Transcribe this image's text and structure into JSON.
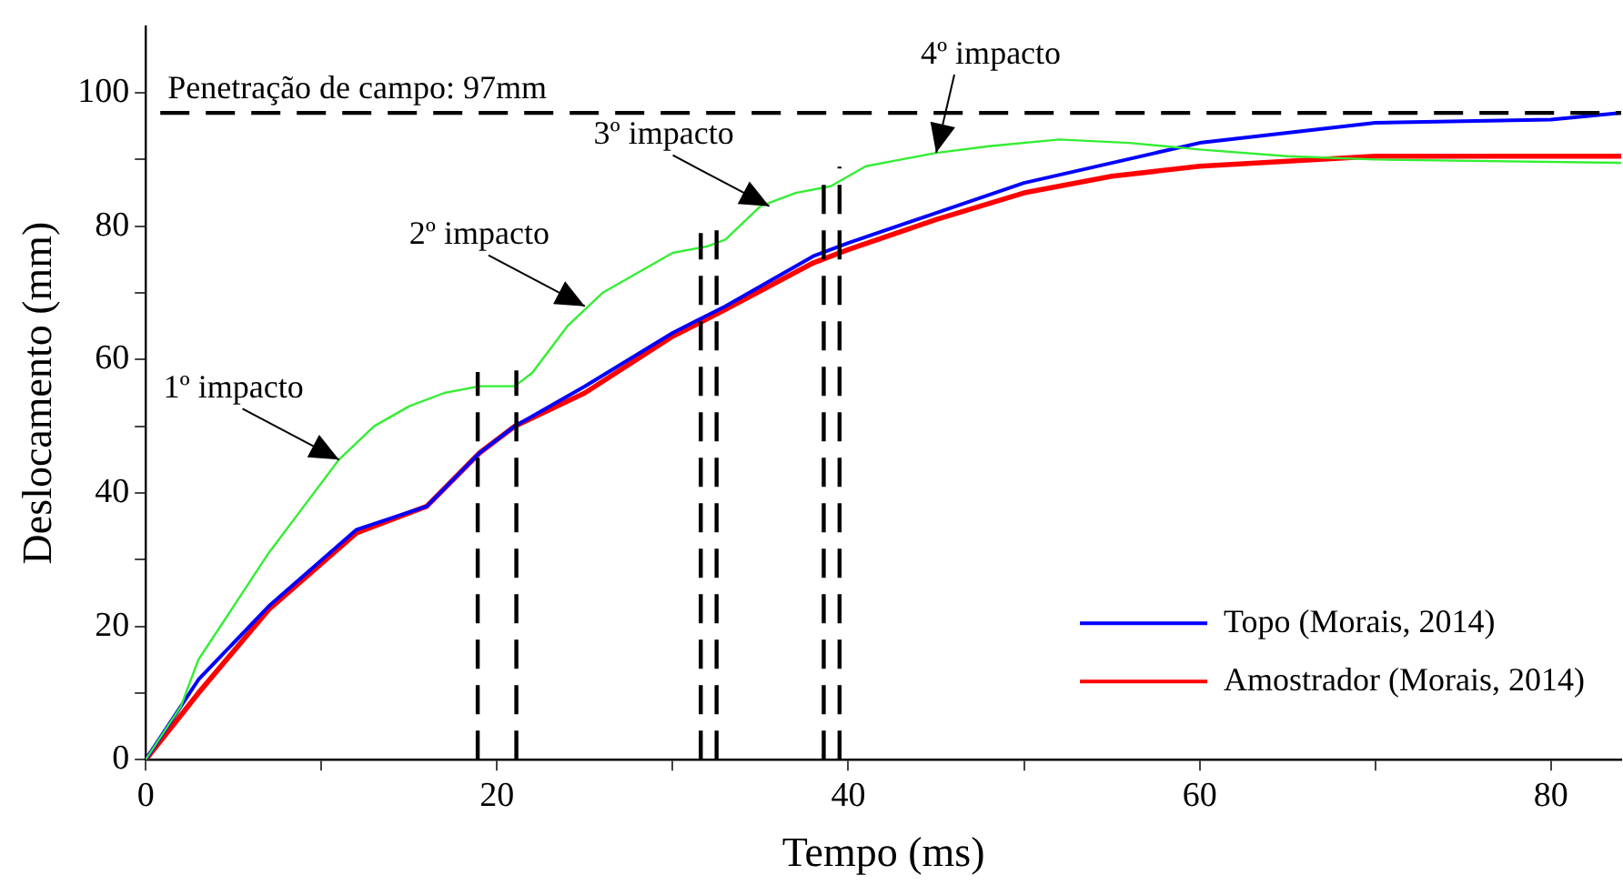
{
  "chart_data": {
    "type": "line",
    "xlabel": "Tempo (ms)",
    "ylabel": "Deslocamento (mm)",
    "xlim": [
      0,
      84
    ],
    "ylim": [
      0,
      110
    ],
    "xticks": [
      0,
      {
        "value": 10,
        "label": null
      },
      20,
      {
        "value": 30,
        "label": null
      },
      40,
      {
        "value": 50,
        "label": null
      },
      60,
      {
        "value": 70,
        "label": null
      },
      80
    ],
    "yticks": [
      0,
      {
        "value": 10,
        "label": null
      },
      20,
      {
        "value": 30,
        "label": null
      },
      40,
      {
        "value": 50,
        "label": null
      },
      60,
      {
        "value": 70,
        "label": null
      },
      80,
      {
        "value": 90,
        "label": null
      },
      100
    ],
    "grid": false,
    "legend": "bottom right",
    "marker": "none",
    "line_style": "solid",
    "series": [
      {
        "color": "#33ee33",
        "x": [
          0,
          2,
          3,
          5,
          7,
          9,
          11,
          13,
          15,
          17,
          19,
          21,
          22,
          24,
          26,
          28,
          30,
          32,
          33,
          35,
          37,
          39,
          41,
          43,
          45,
          48,
          52,
          56,
          60,
          65,
          70,
          84
        ],
        "values": [
          0,
          8,
          15,
          23,
          31,
          38,
          45,
          50,
          53,
          55,
          56,
          56,
          58,
          65,
          70,
          73,
          76,
          77,
          78,
          83,
          85,
          86,
          89,
          90,
          91,
          92,
          93,
          92.5,
          91.5,
          90.5,
          90,
          89.5
        ]
      },
      {
        "name": "Topo (Morais, 2014)",
        "color": "#0000ff",
        "x": [
          0,
          3,
          7,
          12,
          16,
          19,
          21,
          25,
          30,
          33,
          38,
          40,
          45,
          50,
          55,
          60,
          70,
          80,
          84
        ],
        "values": [
          0,
          12,
          23,
          34.5,
          38,
          46,
          50,
          56,
          64,
          68,
          75.5,
          77.5,
          82,
          86.5,
          89.5,
          92.5,
          95.5,
          96,
          97
        ]
      },
      {
        "name": "Amostrador (Morais, 2014)",
        "color": "#ff0000",
        "x": [
          0,
          3,
          7,
          12,
          16,
          19,
          21,
          25,
          30,
          33,
          38,
          40,
          45,
          50,
          55,
          60,
          70,
          84
        ],
        "values": [
          0,
          10,
          22.5,
          34,
          38,
          46,
          50,
          55,
          63.5,
          67.5,
          74.5,
          76.5,
          81,
          85,
          87.5,
          89,
          90.5,
          90.5
        ]
      }
    ],
    "ref_lines": [
      {
        "axis": "y",
        "value": 97,
        "label": "Penetração de campo: 97mm",
        "color": "#000000",
        "line_style": "dashed"
      },
      {
        "axis": "x",
        "value": 18.9,
        "label": null,
        "color": "#000000",
        "line_style": "dashed"
      },
      {
        "axis": "x",
        "value": 21.1,
        "label": null,
        "color": "#000000",
        "line_style": "dashed"
      },
      {
        "axis": "x",
        "value": 31.6,
        "label": null,
        "color": "#000000",
        "line_style": "dashed"
      },
      {
        "axis": "x",
        "value": 32.5,
        "label": null,
        "color": "#000000",
        "line_style": "dashed"
      },
      {
        "axis": "x",
        "value": 38.6,
        "label": null,
        "color": "#000000",
        "line_style": "dashed"
      },
      {
        "axis": "x",
        "value": 39.5,
        "label": null,
        "color": "#000000",
        "line_style": "dashed"
      }
    ],
    "annotations": [
      {
        "text": "1º impacto",
        "x": 11,
        "y": 45
      },
      {
        "text": "2º impacto",
        "x": 25,
        "y": 68
      },
      {
        "text": "3º impacto",
        "x": 35.5,
        "y": 83
      },
      {
        "text": "4º impacto",
        "x": 45,
        "y": 91
      }
    ]
  }
}
